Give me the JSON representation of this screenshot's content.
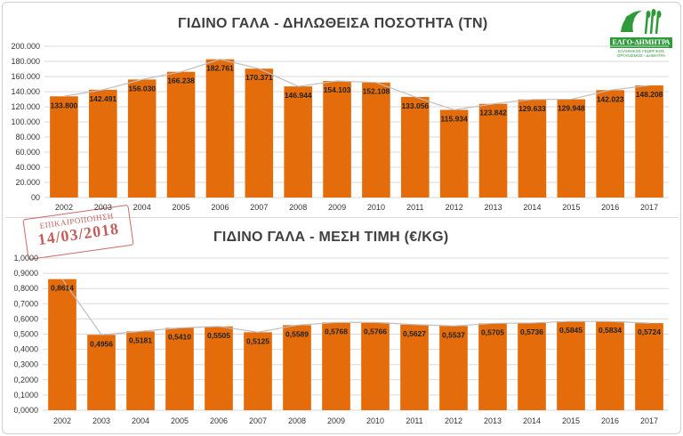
{
  "logo": {
    "name": "ΕΛΓΟ-ΔΗΜΗΤΡΑ",
    "subtitle": "ΕΛΛΗΝΙΚΟΣ ΓΕΩΡΓΙΚΟΣ ΟΡΓΑΝΙΣΜΟΣ - ΔΗΜΗΤΡΑ",
    "color": "#2e9a3a"
  },
  "stamp": {
    "label": "ΕΠΙΚΑΙΡΟΠΟΙΗΣΗ",
    "date": "14/03/2018",
    "color": "#c0504d"
  },
  "chart_data": [
    {
      "type": "bar",
      "title": "ΓΙΔΙΝΟ ΓΑΛΑ - ΔΗΛΩΘΕΙΣΑ ΠΟΣΟΤΗΤΑ (ΤΝ)",
      "categories": [
        "2002",
        "2003",
        "2004",
        "2005",
        "2006",
        "2007",
        "2008",
        "2009",
        "2010",
        "2011",
        "2012",
        "2013",
        "2014",
        "2015",
        "2016",
        "2017"
      ],
      "values": [
        133800,
        142491,
        156030,
        166238,
        182761,
        170371,
        146944,
        154103,
        152108,
        133056,
        115934,
        123842,
        129633,
        129948,
        142023,
        148208
      ],
      "value_labels": [
        "133.800",
        "142.491",
        "156.030",
        "166.238",
        "182.761",
        "170.371",
        "146.944",
        "154.103",
        "152.108",
        "133.056",
        "115.934",
        "123.842",
        "129.633",
        "129.948",
        "142.023",
        "148.208"
      ],
      "ylim": [
        0,
        200000
      ],
      "yticks": [
        "00",
        "20.000",
        "40.000",
        "60.000",
        "80.000",
        "100.000",
        "120.000",
        "140.000",
        "160.000",
        "180.000",
        "200.000"
      ],
      "ystep": 20000,
      "bar_color": "#e46c0a",
      "trend_line": true,
      "grid": true
    },
    {
      "type": "bar",
      "title": "ΓΙΔΙΝΟ ΓΑΛΑ - ΜΕΣΗ ΤΙΜΗ (€/KG)",
      "categories": [
        "2002",
        "2003",
        "2004",
        "2005",
        "2006",
        "2007",
        "2008",
        "2009",
        "2010",
        "2011",
        "2012",
        "2013",
        "2014",
        "2015",
        "2016",
        "2017"
      ],
      "values": [
        0.8614,
        0.4956,
        0.5181,
        0.541,
        0.5505,
        0.5125,
        0.5589,
        0.5768,
        0.5766,
        0.5627,
        0.5537,
        0.5705,
        0.5736,
        0.5845,
        0.5834,
        0.5724
      ],
      "value_labels": [
        "0,8614",
        "0,4956",
        "0,5181",
        "0,5410",
        "0,5505",
        "0,5125",
        "0,5589",
        "0,5768",
        "0,5766",
        "0,5627",
        "0,5537",
        "0,5705",
        "0,5736",
        "0,5845",
        "0,5834",
        "0,5724"
      ],
      "ylim": [
        0,
        1.0
      ],
      "yticks": [
        "0,0000",
        "0,1000",
        "0,2000",
        "0,3000",
        "0,4000",
        "0,5000",
        "0,6000",
        "0,7000",
        "0,8000",
        "0,9000",
        "1,0000"
      ],
      "ystep": 0.1,
      "bar_color": "#e46c0a",
      "trend_line": true,
      "grid": true
    }
  ]
}
